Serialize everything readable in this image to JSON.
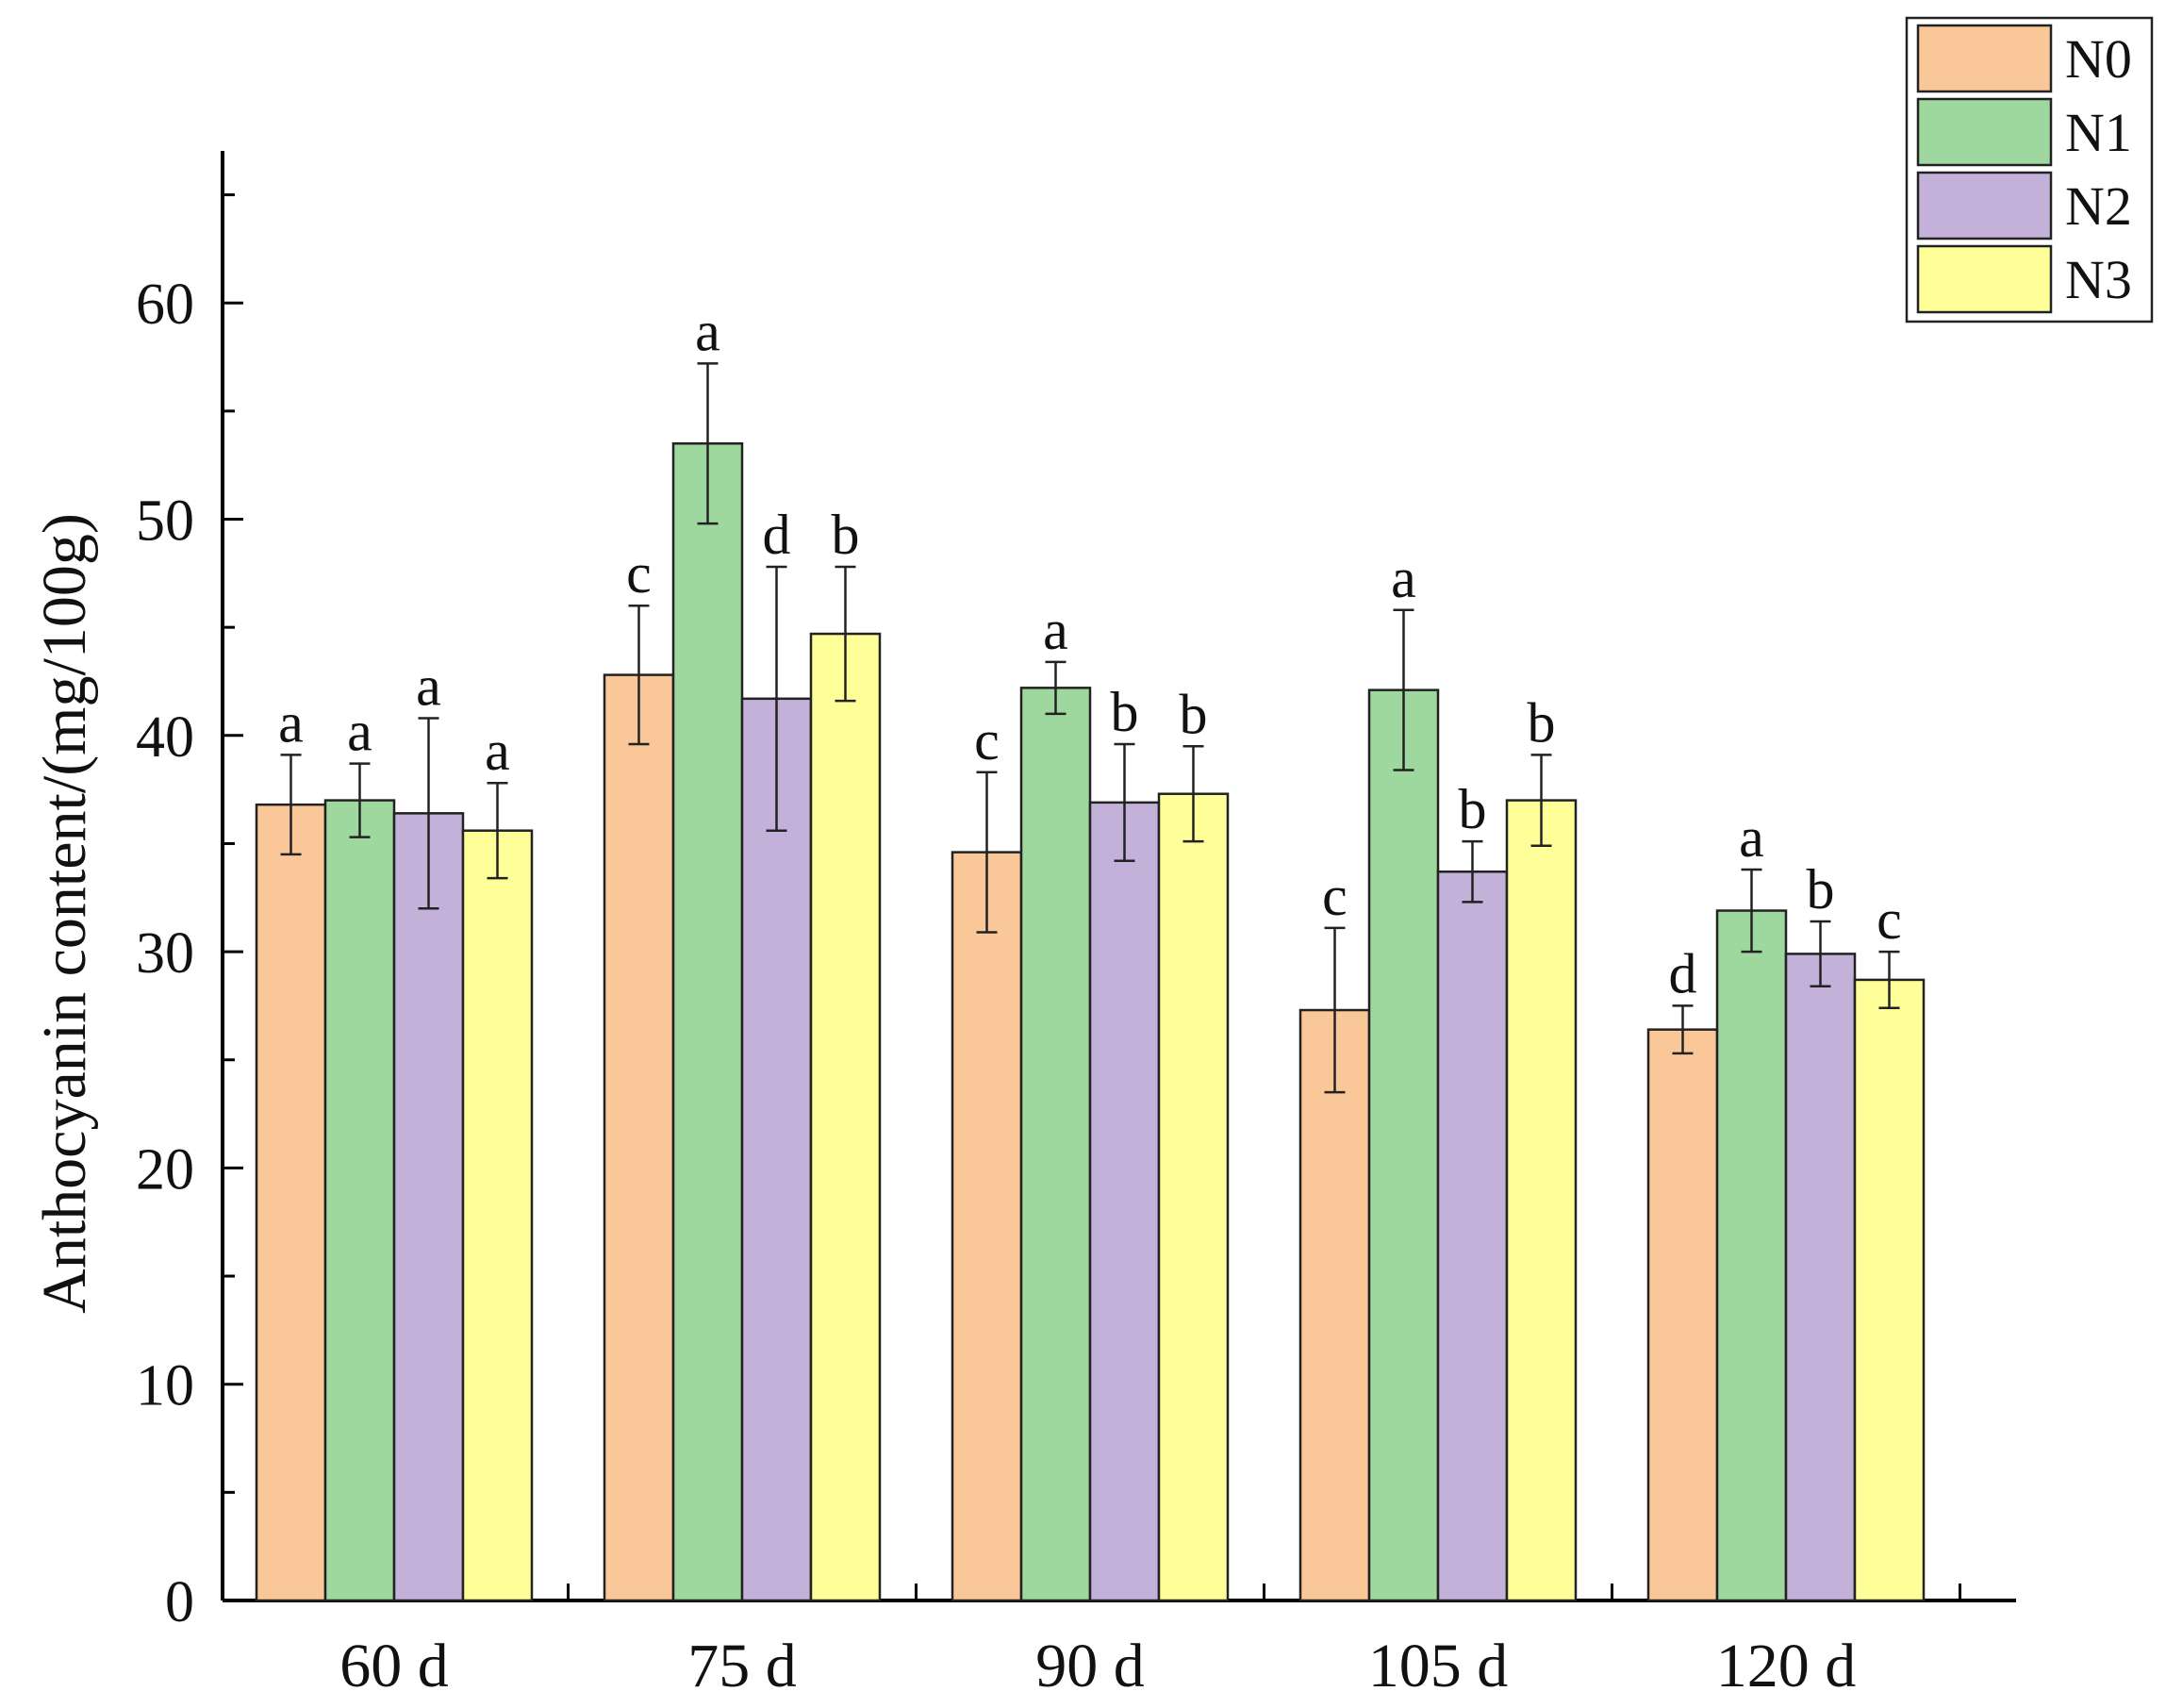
{
  "chart_data": {
    "type": "bar",
    "title": "",
    "xlabel": "",
    "ylabel": "Anthocyanin content/(mg/100g)",
    "ylim": [
      0,
      66
    ],
    "yticks": [
      0,
      10,
      20,
      30,
      40,
      50,
      60
    ],
    "grid": false,
    "legend_position": "top-right",
    "categories": [
      "60 d",
      "75 d",
      "90 d",
      "105 d",
      "120 d"
    ],
    "series": [
      {
        "name": "N0",
        "color": "#FAC898",
        "values": [
          36.8,
          42.8,
          34.6,
          27.3,
          26.4
        ],
        "errors": [
          2.3,
          3.2,
          3.7,
          3.8,
          1.1
        ],
        "labels": [
          "a",
          "c",
          "c",
          "c",
          "d"
        ]
      },
      {
        "name": "N1",
        "color": "#9ED89E",
        "values": [
          37.0,
          53.5,
          42.2,
          42.1,
          31.9
        ],
        "errors": [
          1.7,
          3.7,
          1.2,
          3.7,
          1.9
        ],
        "labels": [
          "a",
          "a",
          "a",
          "a",
          "a"
        ]
      },
      {
        "name": "N2",
        "color": "#C3B1D9",
        "values": [
          36.4,
          41.7,
          36.9,
          33.7,
          29.9
        ],
        "errors": [
          4.4,
          6.1,
          2.7,
          1.4,
          1.5
        ],
        "labels": [
          "a",
          "d",
          "b",
          "b",
          "b"
        ]
      },
      {
        "name": "N3",
        "color": "#FFFF99",
        "values": [
          35.6,
          44.7,
          37.3,
          37.0,
          28.7
        ],
        "errors": [
          2.2,
          3.1,
          2.2,
          2.1,
          1.3
        ],
        "labels": [
          "a",
          "b",
          "b",
          "b",
          "c"
        ]
      }
    ]
  }
}
